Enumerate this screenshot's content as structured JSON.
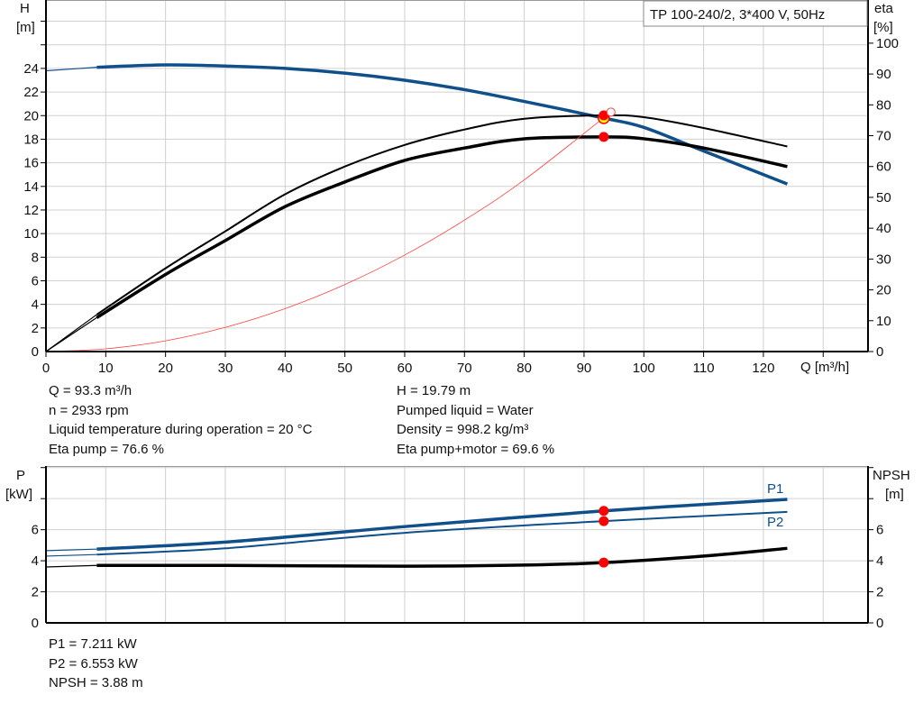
{
  "title_box": "TP 100-240/2, 3*400 V, 50Hz",
  "colors": {
    "head": "#0f4f8a",
    "efficiency": "#000000",
    "system": "#ff4040",
    "operating_point": "#ff0000",
    "duty_point_fill": "#ffff00",
    "grid": "#d0d0d0"
  },
  "chart_data": [
    {
      "type": "line",
      "xlabel": "Q [m³/h]",
      "ylabel": "H\n[m]",
      "y2label": "eta\n[%]",
      "xlim": [
        0,
        137.5
      ],
      "ylim": [
        0,
        29.8
      ],
      "y2lim": [
        0,
        114
      ],
      "xticks": [
        0,
        10,
        20,
        30,
        40,
        50,
        60,
        70,
        80,
        90,
        100,
        110,
        120
      ],
      "yticks": [
        0,
        2,
        4,
        6,
        8,
        10,
        12,
        14,
        16,
        18,
        20,
        22,
        24
      ],
      "y2ticks": [
        0,
        10,
        20,
        30,
        40,
        50,
        60,
        70,
        80,
        90,
        100
      ],
      "grid": true,
      "series": [
        {
          "id": "head",
          "axis": "left",
          "x": [
            0,
            8.5,
            20,
            30,
            40,
            50,
            60,
            70,
            80,
            93.3,
            100,
            110,
            124
          ],
          "y": [
            23.8,
            24.1,
            24.3,
            24.2,
            24.0,
            23.6,
            23.0,
            22.2,
            21.2,
            19.79,
            19.0,
            17.0,
            14.2
          ]
        },
        {
          "id": "eta-pump",
          "axis": "right",
          "x": [
            0,
            8.5,
            20,
            30,
            40,
            50,
            60,
            70,
            80,
            93.3,
            100,
            110,
            124
          ],
          "y": [
            0,
            12,
            27,
            39,
            51,
            60,
            67,
            72,
            75.5,
            76.6,
            76,
            72.5,
            66.5
          ]
        },
        {
          "id": "eta-pump-motor",
          "axis": "right",
          "x": [
            0,
            8.5,
            20,
            30,
            40,
            50,
            60,
            70,
            80,
            93.3,
            100,
            110,
            124
          ],
          "y": [
            0,
            11,
            25,
            36,
            47,
            55,
            62,
            66,
            69,
            69.6,
            69,
            66,
            60
          ]
        },
        {
          "id": "system-curve",
          "axis": "left",
          "x": [
            0,
            10,
            20,
            30,
            40,
            50,
            60,
            70,
            80,
            94.5
          ],
          "y": [
            0,
            0.23,
            0.91,
            2.05,
            3.64,
            5.68,
            8.18,
            11.14,
            14.55,
            20.3
          ]
        }
      ],
      "operating_points": [
        {
          "series": "head",
          "x": 93.3,
          "y": 19.79
        },
        {
          "series": "eta-pump",
          "x": 93.3,
          "y": 76.6
        },
        {
          "series": "eta-pump-motor",
          "x": 93.3,
          "y": 69.6
        }
      ]
    },
    {
      "type": "line",
      "ylabel": "P\n[kW]",
      "y2label": "NPSH\n[m]",
      "xlim": [
        0,
        137.5
      ],
      "ylim": [
        0,
        10.1
      ],
      "yticks": [
        0,
        2,
        4,
        6
      ],
      "y2ticks": [
        0,
        2,
        4,
        6
      ],
      "grid": true,
      "series": [
        {
          "id": "P1",
          "name": "P1",
          "x": [
            0,
            8.5,
            30,
            60,
            93.3,
            124
          ],
          "y": [
            4.65,
            4.75,
            5.2,
            6.2,
            7.211,
            7.95
          ]
        },
        {
          "id": "P2",
          "name": "P2",
          "x": [
            0,
            8.5,
            30,
            60,
            93.3,
            124
          ],
          "y": [
            4.3,
            4.4,
            4.8,
            5.8,
            6.553,
            7.15
          ]
        },
        {
          "id": "NPSH",
          "x": [
            0,
            8.5,
            30,
            60,
            80,
            93.3,
            110,
            124
          ],
          "y": [
            3.6,
            3.7,
            3.7,
            3.65,
            3.72,
            3.88,
            4.3,
            4.8
          ]
        }
      ],
      "operating_points": [
        {
          "series": "P1",
          "x": 93.3,
          "y": 7.211
        },
        {
          "series": "P2",
          "x": 93.3,
          "y": 6.553
        },
        {
          "series": "NPSH",
          "x": 93.3,
          "y": 3.88
        }
      ]
    }
  ],
  "info_top_left": [
    "Q = 93.3 m³/h",
    "n = 2933 rpm",
    "Liquid temperature during operation = 20 °C",
    "Eta pump = 76.6 %"
  ],
  "info_top_right": [
    "H = 19.79 m",
    "Pumped liquid = Water",
    "Density = 998.2 kg/m³",
    "Eta pump+motor = 69.6 %"
  ],
  "info_bottom": [
    "P1 = 7.211 kW",
    "P2 = 6.553 kW",
    "NPSH = 3.88 m"
  ],
  "labels": {
    "h": "H",
    "h_unit": "[m]",
    "eta": "eta",
    "eta_unit": "[%]",
    "q": "Q [m³/h]",
    "p": "P",
    "p_unit": "[kW]",
    "npsh": "NPSH",
    "npsh_unit": "[m]"
  }
}
